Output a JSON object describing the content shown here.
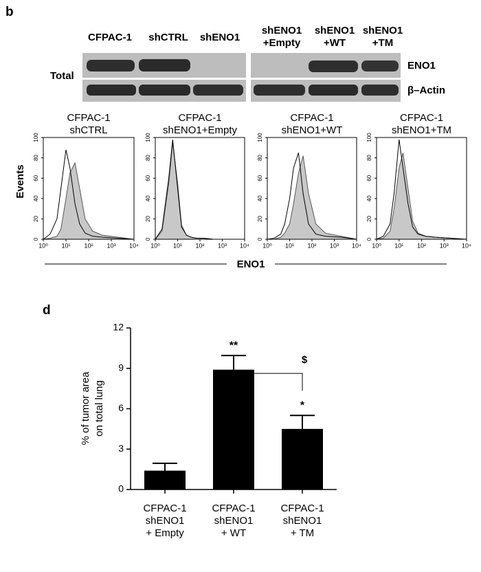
{
  "panel_labels": [
    "b",
    "d"
  ],
  "blot": {
    "columns": [
      [
        "CFPAC-1"
      ],
      [
        "shCTRL"
      ],
      [
        "shENO1"
      ],
      [
        "shENO1",
        "+Empty"
      ],
      [
        "shENO1",
        "+WT"
      ],
      [
        "shENO1",
        "+TM"
      ]
    ],
    "row_group_label": "Total",
    "rows": [
      "ENO1",
      "β–Actin"
    ]
  },
  "histogram_y_label": "Events",
  "histogram_x_label": "ENO1",
  "chart_data": [
    {
      "type": "line",
      "title": [
        "CFPAC-1",
        "shCTRL"
      ],
      "xscale": "log",
      "xlim": [
        1,
        10000
      ],
      "ylim": [
        0,
        100
      ],
      "yticks": [
        0,
        20,
        40,
        60,
        80,
        100
      ],
      "xticks": [
        {
          "value": 1,
          "label": "10⁰"
        },
        {
          "value": 10,
          "label": "10¹"
        },
        {
          "value": 100,
          "label": "10²"
        },
        {
          "value": 1000,
          "label": "10³"
        },
        {
          "value": 10000,
          "label": "10⁴"
        }
      ],
      "x": [
        1,
        2,
        4,
        6,
        10,
        15,
        25,
        40,
        70,
        150,
        400,
        2000,
        10000
      ],
      "series": [
        {
          "color": "#c8c8c8",
          "fill": true,
          "values": [
            0,
            1,
            3,
            10,
            40,
            65,
            75,
            50,
            20,
            8,
            4,
            2,
            0
          ]
        },
        {
          "color": "#000000",
          "fill": false,
          "values": [
            0,
            5,
            20,
            50,
            88,
            70,
            35,
            15,
            6,
            3,
            2,
            1,
            0
          ]
        }
      ]
    },
    {
      "type": "line",
      "title": [
        "CFPAC-1",
        "shENO1+Empty"
      ],
      "xscale": "log",
      "xlim": [
        1,
        10000
      ],
      "ylim": [
        0,
        100
      ],
      "yticks": [
        0,
        20,
        40,
        60,
        80,
        100
      ],
      "xticks": [
        {
          "value": 1,
          "label": "10⁰"
        },
        {
          "value": 10,
          "label": "10¹"
        },
        {
          "value": 100,
          "label": "10²"
        },
        {
          "value": 1000,
          "label": "10³"
        },
        {
          "value": 10000,
          "label": "10⁴"
        }
      ],
      "x": [
        1,
        2,
        4,
        6,
        10,
        15,
        25,
        40,
        70,
        150,
        400,
        2000,
        10000
      ],
      "series": [
        {
          "color": "#c8c8c8",
          "fill": true,
          "values": [
            0,
            8,
            55,
            95,
            55,
            14,
            4,
            2,
            1,
            1,
            0,
            0,
            0
          ]
        },
        {
          "color": "#000000",
          "fill": false,
          "values": [
            0,
            10,
            60,
            98,
            50,
            12,
            4,
            2,
            1,
            1,
            0,
            0,
            0
          ]
        }
      ]
    },
    {
      "type": "line",
      "title": [
        "CFPAC-1",
        "shENO1+WT"
      ],
      "xscale": "log",
      "xlim": [
        1,
        10000
      ],
      "ylim": [
        0,
        100
      ],
      "yticks": [
        0,
        20,
        40,
        60,
        80,
        100
      ],
      "xticks": [
        {
          "value": 1,
          "label": "10⁰"
        },
        {
          "value": 10,
          "label": "10¹"
        },
        {
          "value": 100,
          "label": "10²"
        },
        {
          "value": 1000,
          "label": "10³"
        },
        {
          "value": 10000,
          "label": "10⁴"
        }
      ],
      "x": [
        1,
        2,
        4,
        6,
        10,
        15,
        25,
        40,
        70,
        150,
        400,
        2000,
        10000
      ],
      "series": [
        {
          "color": "#c8c8c8",
          "fill": true,
          "values": [
            0,
            0,
            2,
            6,
            15,
            35,
            65,
            82,
            45,
            15,
            6,
            3,
            0
          ]
        },
        {
          "color": "#000000",
          "fill": false,
          "values": [
            0,
            1,
            5,
            15,
            40,
            70,
            85,
            45,
            15,
            5,
            3,
            2,
            0
          ]
        }
      ]
    },
    {
      "type": "line",
      "title": [
        "CFPAC-1",
        "shENO1+TM"
      ],
      "xscale": "log",
      "xlim": [
        1,
        10000
      ],
      "ylim": [
        0,
        100
      ],
      "yticks": [
        0,
        20,
        40,
        60,
        80,
        100
      ],
      "xticks": [
        {
          "value": 1,
          "label": "10⁰"
        },
        {
          "value": 10,
          "label": "10¹"
        },
        {
          "value": 100,
          "label": "10²"
        },
        {
          "value": 1000,
          "label": "10³"
        },
        {
          "value": 10000,
          "label": "10⁴"
        }
      ],
      "x": [
        1,
        2,
        4,
        6,
        10,
        15,
        25,
        40,
        70,
        150,
        400,
        2000,
        10000
      ],
      "series": [
        {
          "color": "#c8c8c8",
          "fill": true,
          "values": [
            0,
            1,
            8,
            30,
            70,
            85,
            50,
            18,
            6,
            3,
            2,
            1,
            0
          ]
        },
        {
          "color": "#000000",
          "fill": false,
          "values": [
            0,
            3,
            15,
            45,
            98,
            70,
            35,
            12,
            5,
            3,
            2,
            1,
            0
          ]
        }
      ]
    },
    {
      "type": "bar",
      "ylabel": [
        "% of tumor area",
        "on total lung"
      ],
      "categories": [
        [
          "CFPAC-1",
          "shENO1",
          "+ Empty"
        ],
        [
          "CFPAC-1",
          "shENO1",
          "+ WT"
        ],
        [
          "CFPAC-1",
          "shENO1",
          "+ TM"
        ]
      ],
      "values": [
        1.4,
        8.9,
        4.5
      ],
      "errors": [
        0.55,
        1.05,
        1.0
      ],
      "color": "#000000",
      "significance": [
        null,
        "**",
        "*"
      ],
      "comparison_label": "$",
      "ylim": [
        0,
        12
      ],
      "yticks": [
        0,
        3,
        6,
        9,
        12
      ]
    }
  ]
}
